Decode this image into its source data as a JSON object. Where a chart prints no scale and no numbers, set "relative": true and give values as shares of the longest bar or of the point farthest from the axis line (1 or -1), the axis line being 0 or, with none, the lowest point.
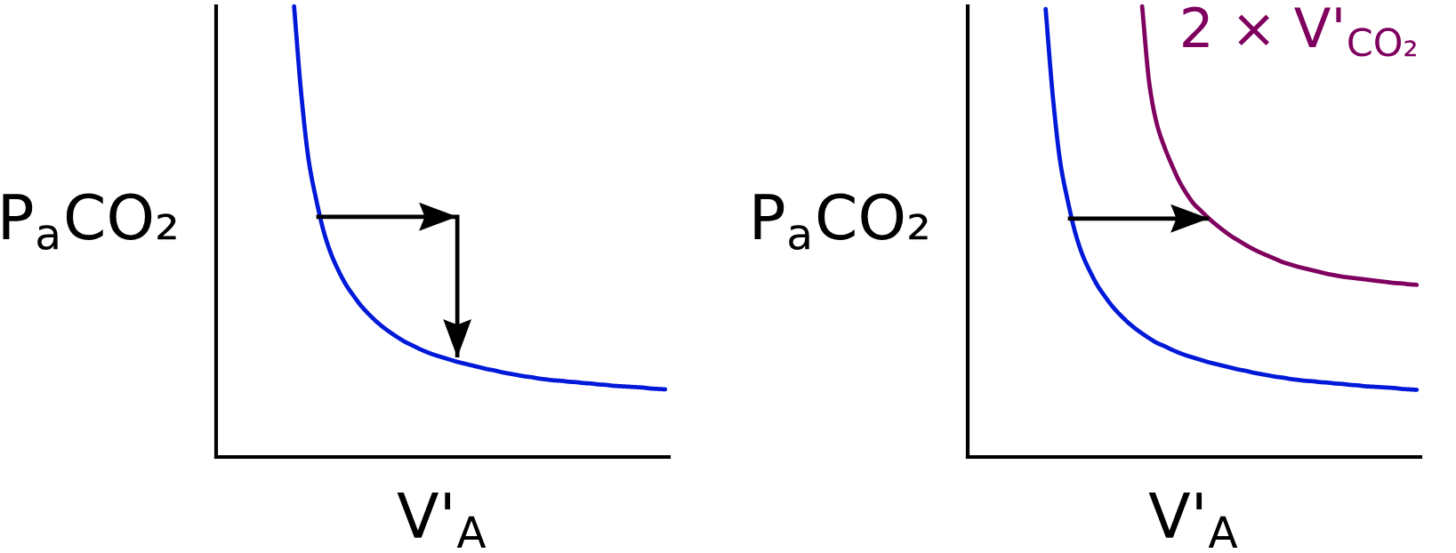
{
  "chart_data": [
    {
      "type": "line",
      "xlabel": "V'$_{A}$",
      "ylabel": "P$_{a}$CO₂",
      "relative": true,
      "categories": [
        null,
        null,
        null,
        null,
        null,
        null,
        null,
        null,
        null,
        null,
        null,
        null,
        null,
        null,
        null,
        null,
        null,
        null,
        null,
        null,
        null,
        null,
        null,
        null,
        null,
        null,
        null,
        null,
        null,
        null,
        null,
        null,
        null,
        null,
        null,
        null,
        null,
        null,
        null,
        null,
        null,
        null,
        null,
        null,
        null,
        null,
        null,
        null,
        null,
        null,
        null,
        null,
        null,
        null,
        null,
        null,
        null,
        null,
        null,
        null,
        null
      ],
      "series": [
        {
          "color": "#0019d9",
          "values": [
            null,
            null,
            null,
            null,
            null,
            null,
            null,
            null,
            null,
            null,
            1.0,
            0.8,
            0.655,
            0.57,
            0.5,
            0.45,
            0.413,
            0.382,
            0.358,
            0.336,
            0.318,
            0.302,
            0.288,
            0.276,
            0.265,
            0.255,
            0.247,
            0.239,
            0.232,
            0.226,
            0.221,
            0.216,
            0.211,
            0.207,
            0.203,
            0.199,
            0.195,
            0.192,
            0.188,
            0.185,
            0.182,
            0.179,
            0.177,
            0.174,
            0.172,
            0.17,
            0.169,
            0.167,
            0.166,
            0.164,
            0.163,
            0.161,
            0.16,
            0.158,
            0.157,
            0.156,
            0.155,
            0.154,
            0.152,
            0.151,
            0.15
          ]
        },
        {
          "type": "step",
          "color": "#000000",
          "values": [
            null,
            null,
            null,
            null,
            null,
            null,
            null,
            null,
            null,
            null,
            null,
            null,
            null,
            0.533,
            0.533,
            0.533,
            0.533,
            0.533,
            0.533,
            0.533,
            0.533,
            0.533,
            0.533,
            0.533,
            0.533,
            0.533,
            0.533,
            0.533,
            0.533,
            0.533,
            0.533,
            0.533,
            0.221,
            null,
            null,
            null,
            null,
            null,
            null,
            null,
            null,
            null,
            null,
            null,
            null,
            null,
            null,
            null,
            null,
            null,
            null,
            null,
            null,
            null,
            null,
            null,
            null,
            null,
            null,
            null,
            null
          ]
        }
      ]
    },
    {
      "type": "line",
      "xlabel": "V'$_{A}$",
      "ylabel": "P$_{a}$CO₂",
      "relative": true,
      "categories": [
        null,
        null,
        null,
        null,
        null,
        null,
        null,
        null,
        null,
        null,
        null,
        null,
        null,
        null,
        null,
        null,
        null,
        null,
        null,
        null,
        null,
        null,
        null,
        null,
        null,
        null,
        null,
        null,
        null,
        null,
        null,
        null,
        null,
        null,
        null,
        null,
        null,
        null,
        null,
        null,
        null,
        null,
        null,
        null,
        null,
        null,
        null,
        null,
        null,
        null,
        null,
        null,
        null,
        null,
        null,
        null,
        null,
        null,
        null,
        null,
        null
      ],
      "series": [
        {
          "color": "#0019d9",
          "values": [
            null,
            null,
            null,
            null,
            null,
            null,
            null,
            null,
            null,
            null,
            0.994,
            0.795,
            0.651,
            0.567,
            0.497,
            0.447,
            0.411,
            0.38,
            0.356,
            0.334,
            0.316,
            0.3,
            0.286,
            0.274,
            0.263,
            0.253,
            0.246,
            0.238,
            0.231,
            0.225,
            0.22,
            0.215,
            0.21,
            0.206,
            0.202,
            0.198,
            0.194,
            0.191,
            0.187,
            0.184,
            0.181,
            0.178,
            0.176,
            0.173,
            0.171,
            0.169,
            0.168,
            0.166,
            0.165,
            0.163,
            0.162,
            0.16,
            0.159,
            0.157,
            0.156,
            0.155,
            0.154,
            0.153,
            0.151,
            0.15,
            0.149
          ]
        },
        {
          "name": "2 × V'$_{CO₂}$",
          "color": "#7f005f",
          "values": [
            null,
            null,
            null,
            null,
            null,
            null,
            null,
            null,
            null,
            null,
            null,
            null,
            null,
            null,
            null,
            null,
            null,
            null,
            null,
            null,
            null,
            null,
            null,
            1.0,
            0.825,
            0.738,
            0.688,
            0.648,
            0.612,
            0.584,
            0.561,
            0.545,
            0.529,
            0.515,
            0.502,
            0.49,
            0.48,
            0.47,
            0.461,
            0.453,
            0.446,
            0.439,
            0.432,
            0.427,
            0.422,
            0.418,
            0.414,
            0.41,
            0.406,
            0.403,
            0.4,
            0.398,
            0.396,
            0.394,
            0.392,
            0.39,
            0.388,
            0.386,
            0.385,
            0.383,
            0.382
          ]
        },
        {
          "type": "step",
          "color": "#000000",
          "values": [
            null,
            null,
            null,
            null,
            null,
            null,
            null,
            null,
            null,
            null,
            null,
            null,
            null,
            0.529,
            0.529,
            0.529,
            0.529,
            0.529,
            0.529,
            0.529,
            0.529,
            0.529,
            0.529,
            0.529,
            0.529,
            0.529,
            0.529,
            0.529,
            0.529,
            0.529,
            0.529,
            0.529,
            0.529,
            null,
            null,
            null,
            null,
            null,
            null,
            null,
            null,
            null,
            null,
            null,
            null,
            null,
            null,
            null,
            null,
            null,
            null,
            null,
            null,
            null,
            null,
            null,
            null,
            null,
            null,
            null,
            null
          ]
        }
      ]
    }
  ]
}
